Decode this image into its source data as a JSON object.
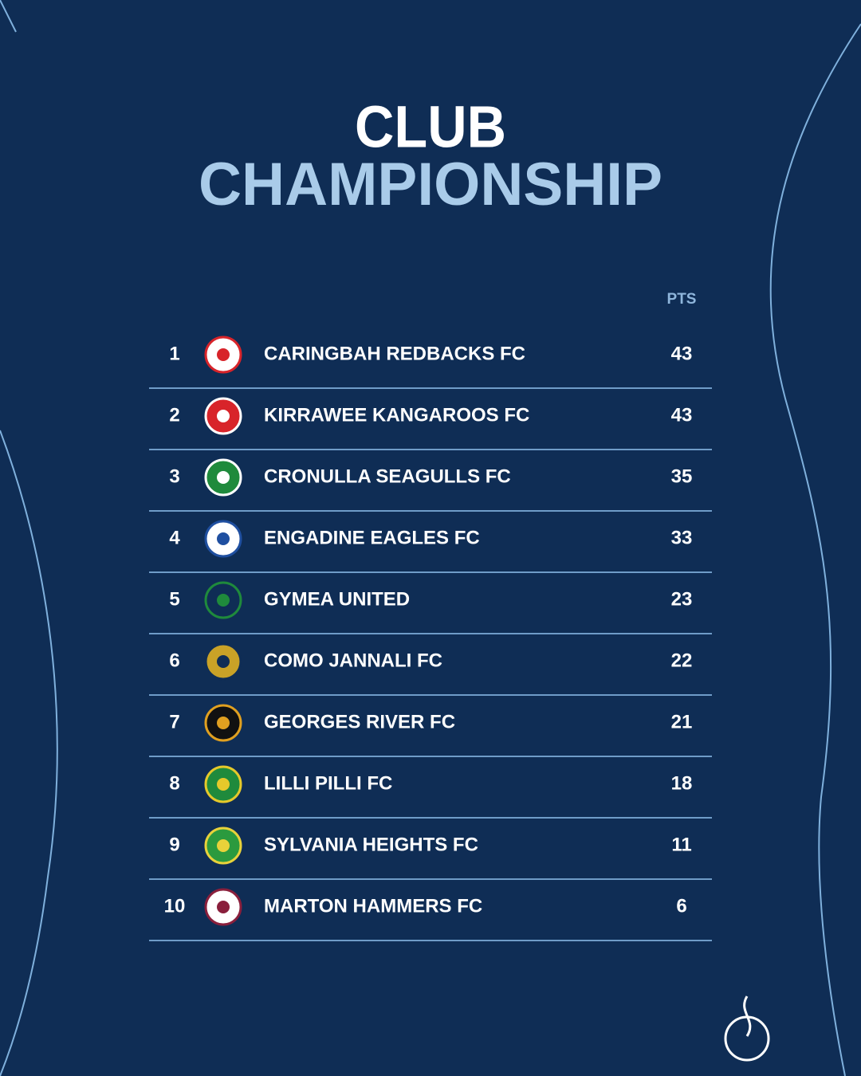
{
  "header": {
    "title_line1": "CLUB",
    "title_line2": "CHAMPIONSHIP"
  },
  "table": {
    "columns": {
      "points": "PTS"
    },
    "rows": [
      {
        "rank": "1",
        "club": "CARINGBAH REDBACKS FC",
        "points": "43"
      },
      {
        "rank": "2",
        "club": "KIRRAWEE KANGAROOS FC",
        "points": "43"
      },
      {
        "rank": "3",
        "club": "CRONULLA SEAGULLS FC",
        "points": "35"
      },
      {
        "rank": "4",
        "club": "ENGADINE EAGLES FC",
        "points": "33"
      },
      {
        "rank": "5",
        "club": "GYMEA UNITED",
        "points": "23"
      },
      {
        "rank": "6",
        "club": "COMO JANNALI FC",
        "points": "22"
      },
      {
        "rank": "7",
        "club": "GEORGES RIVER FC",
        "points": "21"
      },
      {
        "rank": "8",
        "club": "LILLI PILLI FC",
        "points": "18"
      },
      {
        "rank": "9",
        "club": "SYLVANIA HEIGHTS FC",
        "points": "11"
      },
      {
        "rank": "10",
        "club": "MARTON HAMMERS FC",
        "points": "6"
      }
    ]
  }
}
